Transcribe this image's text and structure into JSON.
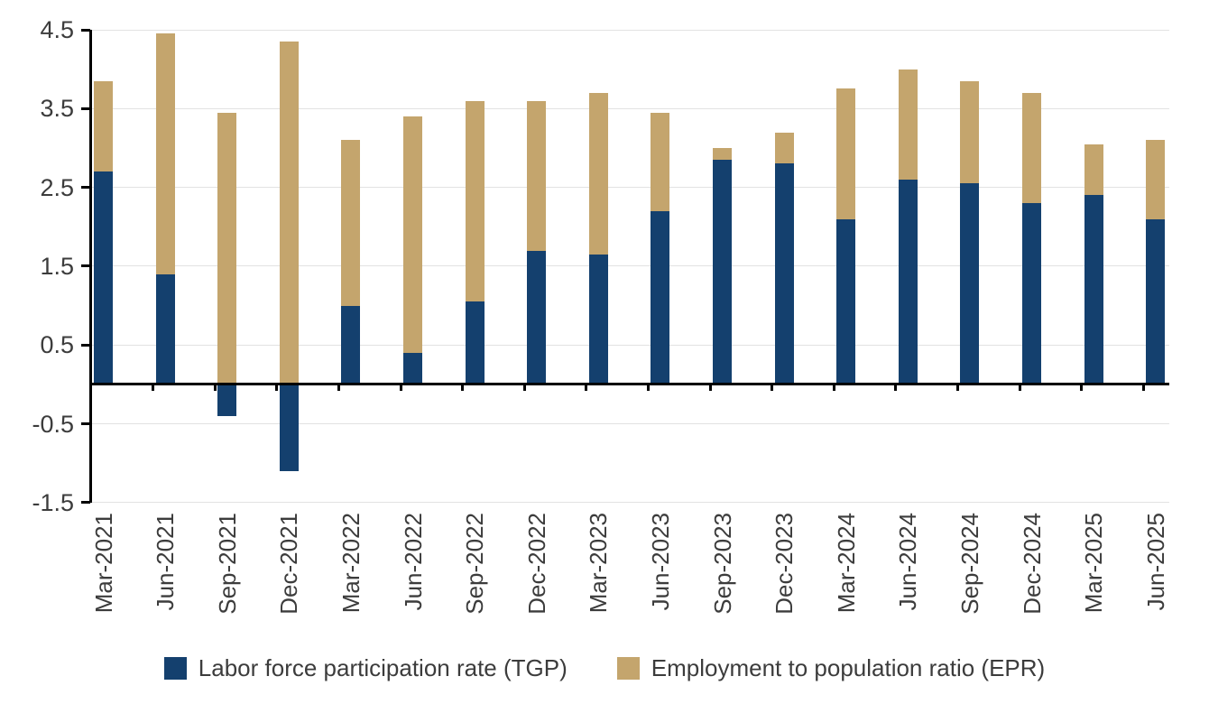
{
  "chart_data": {
    "type": "bar",
    "stacked": true,
    "title": "",
    "xlabel": "",
    "ylabel": "",
    "grid": true,
    "legend_position": "bottom",
    "ylim": [
      -1.5,
      4.5
    ],
    "yticks": [
      4.5,
      3.5,
      2.5,
      1.5,
      0.5,
      -0.5,
      -1.5
    ],
    "categories": [
      "Mar-2021",
      "Jun-2021",
      "Sep-2021",
      "Dec-2021",
      "Mar-2022",
      "Jun-2022",
      "Sep-2022",
      "Dec-2022",
      "Mar-2023",
      "Jun-2023",
      "Sep-2023",
      "Dec-2023",
      "Mar-2024",
      "Jun-2024",
      "Sep-2024",
      "Dec-2024",
      "Mar-2025",
      "Jun-2025"
    ],
    "series": [
      {
        "name": "Labor force participation rate (TGP)",
        "color": "#14406e",
        "values": [
          2.7,
          1.4,
          -0.4,
          -1.1,
          1.0,
          0.4,
          1.05,
          1.7,
          1.65,
          2.2,
          2.85,
          2.8,
          2.1,
          2.6,
          2.55,
          2.3,
          2.4,
          2.1
        ]
      },
      {
        "name": "Employment to population ratio (EPR)",
        "color": "#c4a56d",
        "values": [
          1.15,
          3.05,
          3.45,
          4.35,
          2.1,
          3.0,
          2.55,
          1.9,
          2.05,
          1.25,
          0.15,
          0.4,
          1.65,
          1.4,
          1.3,
          1.4,
          0.65,
          1.0
        ]
      }
    ]
  },
  "colors": {
    "background": "#ffffff",
    "gridline": "#e2e2e2",
    "axis": "#000000",
    "tick_text": "#3c3c3c"
  }
}
